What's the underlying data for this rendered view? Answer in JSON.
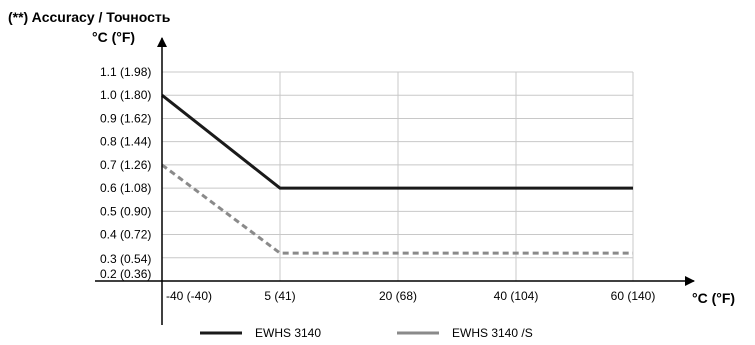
{
  "chart_data": {
    "type": "line",
    "title": "(**) Accuracy / Точность",
    "ylabel": "°C (°F)",
    "xlabel": "°C (°F)",
    "x_ticks": [
      {
        "value": -40,
        "label": "-40 (-40)"
      },
      {
        "value": 5,
        "label": "5 (41)"
      },
      {
        "value": 20,
        "label": "20 (68)"
      },
      {
        "value": 40,
        "label": "40 (104)"
      },
      {
        "value": 60,
        "label": "60 (140)"
      }
    ],
    "y_ticks": [
      {
        "value": 0.2,
        "label": "0.2 (0.36)"
      },
      {
        "value": 0.3,
        "label": "0.3 (0.54)"
      },
      {
        "value": 0.4,
        "label": "0.4 (0.72)"
      },
      {
        "value": 0.5,
        "label": "0.5 (0.90)"
      },
      {
        "value": 0.6,
        "label": "0.6 (1.08)"
      },
      {
        "value": 0.7,
        "label": "0.7 (1.26)"
      },
      {
        "value": 0.8,
        "label": "0.8 (1.44)"
      },
      {
        "value": 0.9,
        "label": "0.9 (1.62)"
      },
      {
        "value": 1.0,
        "label": "1.0 (1.80)"
      },
      {
        "value": 1.1,
        "label": "1.1 (1.98)"
      }
    ],
    "series": [
      {
        "name": "EWHS 3140",
        "color": "#1a1a1a",
        "style": "solid",
        "x": [
          -40,
          5,
          60
        ],
        "y": [
          1.0,
          0.6,
          0.6
        ]
      },
      {
        "name": "EWHS 3140 /S",
        "color": "#8a8a8a",
        "style": "dashed",
        "x": [
          -40,
          5,
          60
        ],
        "y": [
          0.7,
          0.32,
          0.32
        ]
      }
    ],
    "grid": true,
    "legend_position": "bottom"
  }
}
